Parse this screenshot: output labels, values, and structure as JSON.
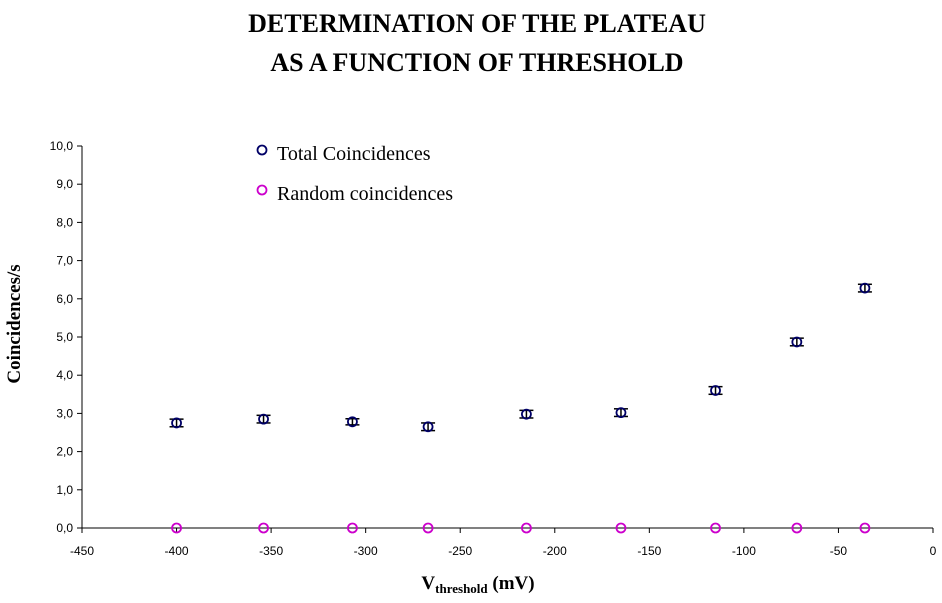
{
  "chart_data": {
    "type": "scatter",
    "title_lines": [
      "DETERMINATION OF THE PLATEAU",
      "AS A FUNCTION OF THRESHOLD"
    ],
    "xlabel_main": "V",
    "xlabel_sub": "threshold",
    "xlabel_unit": "(mV)",
    "ylabel": "Coincidences/s",
    "xlim": [
      -450,
      0
    ],
    "ylim": [
      0,
      10
    ],
    "x_ticks": [
      "-450",
      "-400",
      "-350",
      "-300",
      "-250",
      "-200",
      "-150",
      "-100",
      "-50",
      "0"
    ],
    "y_ticks": [
      "0,0",
      "1,0",
      "2,0",
      "3,0",
      "4,0",
      "5,0",
      "6,0",
      "7,0",
      "8,0",
      "9,0",
      "10,0"
    ],
    "grid": false,
    "legend_position": "top-left",
    "series": [
      {
        "name": "Total Coincidences",
        "color": "#000066",
        "marker": "open-circle",
        "x": [
          -400,
          -354,
          -307,
          -267,
          -215,
          -165,
          -115,
          -72,
          -36
        ],
        "y": [
          2.75,
          2.85,
          2.78,
          2.65,
          2.98,
          3.02,
          3.6,
          4.87,
          6.28
        ],
        "error": [
          0.1,
          0.1,
          0.08,
          0.1,
          0.1,
          0.1,
          0.1,
          0.1,
          0.1
        ]
      },
      {
        "name": "Random coincidences",
        "color": "#cc00cc",
        "marker": "open-circle",
        "x": [
          -400,
          -354,
          -307,
          -267,
          -215,
          -165,
          -115,
          -72,
          -36
        ],
        "y": [
          0,
          0,
          0,
          0,
          0,
          0,
          0,
          0,
          0
        ],
        "error": [
          0,
          0,
          0,
          0,
          0,
          0,
          0,
          0,
          0
        ]
      }
    ]
  }
}
